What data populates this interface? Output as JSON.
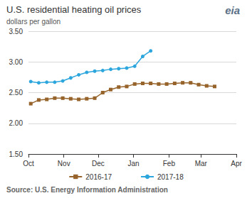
{
  "chart_data": {
    "type": "line",
    "title": "U.S. residential heating oil prices",
    "subtitle": "dollars per gallon",
    "logo": "eia",
    "source": "Source: U.S. Energy Information Administration",
    "xlim": [
      0,
      182
    ],
    "xticks": [
      {
        "value": 0,
        "label": "Oct"
      },
      {
        "value": 31,
        "label": "Nov"
      },
      {
        "value": 61,
        "label": "Dec"
      },
      {
        "value": 92,
        "label": "Jan"
      },
      {
        "value": 123,
        "label": "Feb"
      },
      {
        "value": 151,
        "label": "Mar"
      },
      {
        "value": 182,
        "label": "Apr"
      }
    ],
    "ylim": [
      1.5,
      3.5
    ],
    "yticks": [
      {
        "value": 1.5,
        "label": "1.50"
      },
      {
        "value": 2,
        "label": "2.00"
      },
      {
        "value": 2.5,
        "label": "2.50"
      },
      {
        "value": 3,
        "label": "3.00"
      },
      {
        "value": 3.5,
        "label": "3.50"
      }
    ],
    "grid": true,
    "legend": "bottom",
    "series": [
      {
        "name": "2016-17",
        "color": "#96632a",
        "marker": "square",
        "x": [
          2,
          9,
          16,
          23,
          30,
          37,
          44,
          51,
          58,
          65,
          72,
          79,
          86,
          93,
          100,
          107,
          114,
          121,
          128,
          135,
          142,
          149,
          156,
          163
        ],
        "values": [
          2.32,
          2.38,
          2.39,
          2.41,
          2.41,
          2.4,
          2.39,
          2.4,
          2.41,
          2.5,
          2.55,
          2.59,
          2.6,
          2.64,
          2.65,
          2.65,
          2.64,
          2.64,
          2.65,
          2.66,
          2.66,
          2.63,
          2.61,
          2.6
        ]
      },
      {
        "name": "2017-18",
        "color": "#2ca6dd",
        "marker": "circle",
        "x": [
          2,
          9,
          16,
          23,
          30,
          37,
          44,
          51,
          58,
          65,
          72,
          79,
          86,
          93,
          100,
          107
        ],
        "values": [
          2.68,
          2.66,
          2.67,
          2.67,
          2.69,
          2.74,
          2.79,
          2.83,
          2.85,
          2.86,
          2.88,
          2.89,
          2.9,
          2.93,
          3.09,
          3.18
        ]
      }
    ]
  }
}
